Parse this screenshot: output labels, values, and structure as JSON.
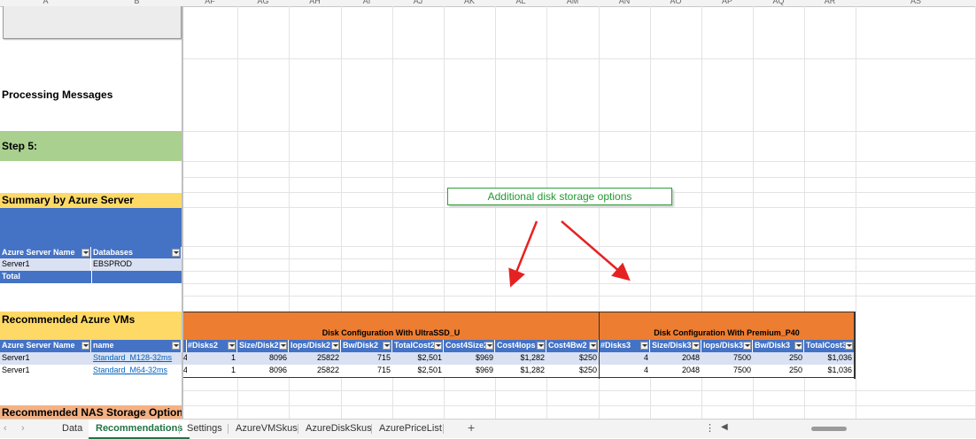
{
  "column_headers": [
    "A",
    "B",
    "AF",
    "AG",
    "AH",
    "AI",
    "AJ",
    "AK",
    "AL",
    "AM",
    "AN",
    "AO",
    "AP",
    "AQ",
    "AR",
    "AS"
  ],
  "labels": {
    "processing_messages": "Processing Messages",
    "step5": "Step 5:",
    "summary_by_server": "Summary by Azure Server",
    "recommended_vms": "Recommended Azure VMs",
    "recommended_nas": "Recommended NAS Storage Options"
  },
  "callout": "Additional disk storage options",
  "summary_table": {
    "headers": [
      "Azure Server Name",
      "Databases"
    ],
    "rows": [
      [
        "Server1",
        "EBSPROD"
      ]
    ],
    "total_label": "Total"
  },
  "vm_table": {
    "group_ultra": "Disk Configuration With UltraSSD_U",
    "group_premium": "Disk Configuration With Premium_P40",
    "left_headers": [
      "Azure Server Name",
      "name"
    ],
    "ultra_headers": [
      "#Disks2",
      "Size/Disk2",
      "Iops/Disk2",
      "Bw/Disk2",
      "TotalCost2",
      "Cost4Size2",
      "Cost4Iops",
      "Cost4Bw2"
    ],
    "premium_headers": [
      "#Disks3",
      "Size/Disk3",
      "Iops/Disk3",
      "Bw/Disk3",
      "TotalCost3"
    ],
    "rows": [
      {
        "server": "Server1",
        "name": "Standard_M128-32ms",
        "edge": "4",
        "ultra": [
          "1",
          "8096",
          "25822",
          "715",
          "$2,501",
          "$969",
          "$1,282",
          "$250"
        ],
        "premium": [
          "4",
          "2048",
          "7500",
          "250",
          "$1,036"
        ]
      },
      {
        "server": "Server1",
        "name": "Standard_M64-32ms",
        "edge": "4",
        "ultra": [
          "1",
          "8096",
          "25822",
          "715",
          "$2,501",
          "$969",
          "$1,282",
          "$250"
        ],
        "premium": [
          "4",
          "2048",
          "7500",
          "250",
          "$1,036"
        ]
      }
    ]
  },
  "sheet_tabs": [
    "Data",
    "Recommendations",
    "Settings",
    "AzureVMSkus",
    "AzureDiskSkus",
    "AzurePriceList"
  ],
  "active_tab": "Recommendations",
  "colors": {
    "orange": "#ed7d31",
    "blue": "#4472c4",
    "light_blue": "#d9e1f2",
    "green": "#a9d08e",
    "yellow": "#ffd966",
    "callout_border": "#2e9e38",
    "callout_text": "#1f9a2c",
    "arrow": "#e52222"
  }
}
